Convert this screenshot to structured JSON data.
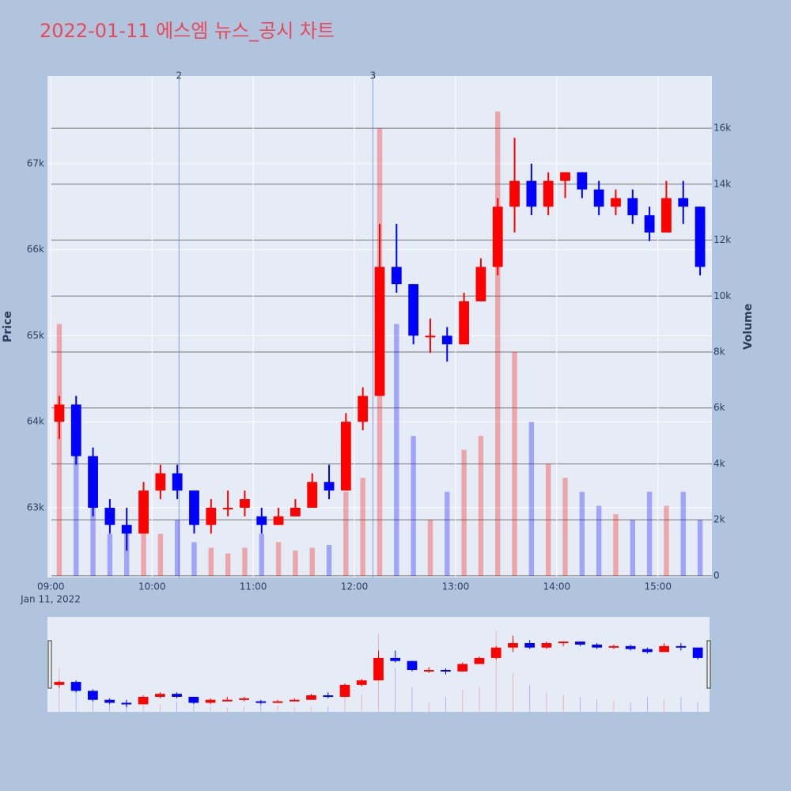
{
  "chart_data": {
    "type": "candlestick",
    "title": "2022-01-11 에스엠 뉴스_공시 차트",
    "x_date_label": "Jan 11, 2022",
    "y_label": "Price",
    "y2_label": "Volume",
    "x": [
      "09:00",
      "09:10",
      "09:20",
      "09:30",
      "09:40",
      "09:50",
      "10:00",
      "10:10",
      "10:20",
      "10:30",
      "10:40",
      "10:50",
      "11:00",
      "11:10",
      "11:20",
      "11:30",
      "11:40",
      "11:50",
      "12:00",
      "12:10",
      "12:20",
      "12:30",
      "12:40",
      "12:50",
      "13:00",
      "13:10",
      "13:20",
      "13:30",
      "13:40",
      "13:50",
      "14:00",
      "14:10",
      "14:20",
      "14:30",
      "14:40",
      "14:50",
      "15:00",
      "15:10",
      "15:20"
    ],
    "open": [
      64000,
      64200,
      63600,
      63000,
      62800,
      62700,
      63200,
      63400,
      63200,
      62800,
      63000,
      63000,
      62900,
      62800,
      62900,
      63000,
      63300,
      63200,
      64000,
      64300,
      65800,
      65600,
      65000,
      65000,
      64900,
      65400,
      65800,
      66500,
      66800,
      66500,
      66800,
      66900,
      66700,
      66500,
      66600,
      66400,
      66200,
      66600,
      66500
    ],
    "high": [
      64300,
      64300,
      63700,
      63100,
      63000,
      63300,
      63500,
      63500,
      63200,
      63100,
      63200,
      63200,
      63000,
      63000,
      63100,
      63400,
      63500,
      64100,
      64400,
      66300,
      66300,
      65600,
      65200,
      65100,
      65500,
      65900,
      66600,
      67300,
      67000,
      66900,
      66900,
      66900,
      66800,
      66700,
      66700,
      66500,
      66800,
      66800,
      66500
    ],
    "low": [
      63800,
      63500,
      62900,
      62700,
      62500,
      62700,
      63100,
      63100,
      62700,
      62700,
      62900,
      62900,
      62700,
      62800,
      62900,
      63000,
      63100,
      63200,
      63900,
      64300,
      65500,
      64900,
      64800,
      64700,
      64900,
      65400,
      65700,
      66200,
      66400,
      66400,
      66600,
      66600,
      66400,
      66400,
      66300,
      66100,
      66200,
      66300,
      65700
    ],
    "close": [
      64200,
      63600,
      63000,
      62800,
      62700,
      63200,
      63400,
      63200,
      62800,
      63000,
      63000,
      63100,
      62800,
      62900,
      63000,
      63300,
      63200,
      64000,
      64300,
      65800,
      65600,
      65000,
      65000,
      64900,
      65400,
      65800,
      66500,
      66800,
      66500,
      66800,
      66900,
      66700,
      66500,
      66600,
      66400,
      66200,
      66600,
      66500,
      65800
    ],
    "volume": [
      9000,
      4500,
      3000,
      1500,
      1800,
      2500,
      1500,
      2000,
      1200,
      1000,
      800,
      1000,
      1500,
      1200,
      900,
      1000,
      1100,
      3000,
      3500,
      16000,
      9000,
      5000,
      2000,
      3000,
      4500,
      5000,
      16600,
      8000,
      5500,
      4000,
      3500,
      3000,
      2500,
      2200,
      2000,
      3000,
      2500,
      3000,
      2000
    ],
    "increasing_color": "#ff0000",
    "decreasing_color": "#0000ff",
    "xlim": [
      "08:58",
      "15:32"
    ],
    "xticks": [
      "09:00",
      "10:00",
      "11:00",
      "12:00",
      "13:00",
      "14:00",
      "15:00"
    ],
    "ylim": [
      62190,
      68020
    ],
    "yticks": [
      {
        "value": 63000,
        "label": "63k"
      },
      {
        "value": 64000,
        "label": "64k"
      },
      {
        "value": 65000,
        "label": "65k"
      },
      {
        "value": 66000,
        "label": "66k"
      },
      {
        "value": 67000,
        "label": "67k"
      }
    ],
    "y2lim": [
      -60,
      17870
    ],
    "y2ticks": [
      0,
      {
        "value": 2000,
        "label": "2k"
      },
      {
        "value": 4000,
        "label": "4k"
      },
      {
        "value": 6000,
        "label": "6k"
      },
      {
        "value": 8000,
        "label": "8k"
      },
      {
        "value": 10000,
        "label": "10k"
      },
      {
        "value": 12000,
        "label": "12k"
      },
      {
        "value": 14000,
        "label": "14k"
      },
      {
        "value": 16000,
        "label": "16k"
      }
    ],
    "events": [
      {
        "x": "10:16",
        "label": "2"
      },
      {
        "x": "12:11",
        "label": "3"
      }
    ],
    "range_slider": true
  }
}
